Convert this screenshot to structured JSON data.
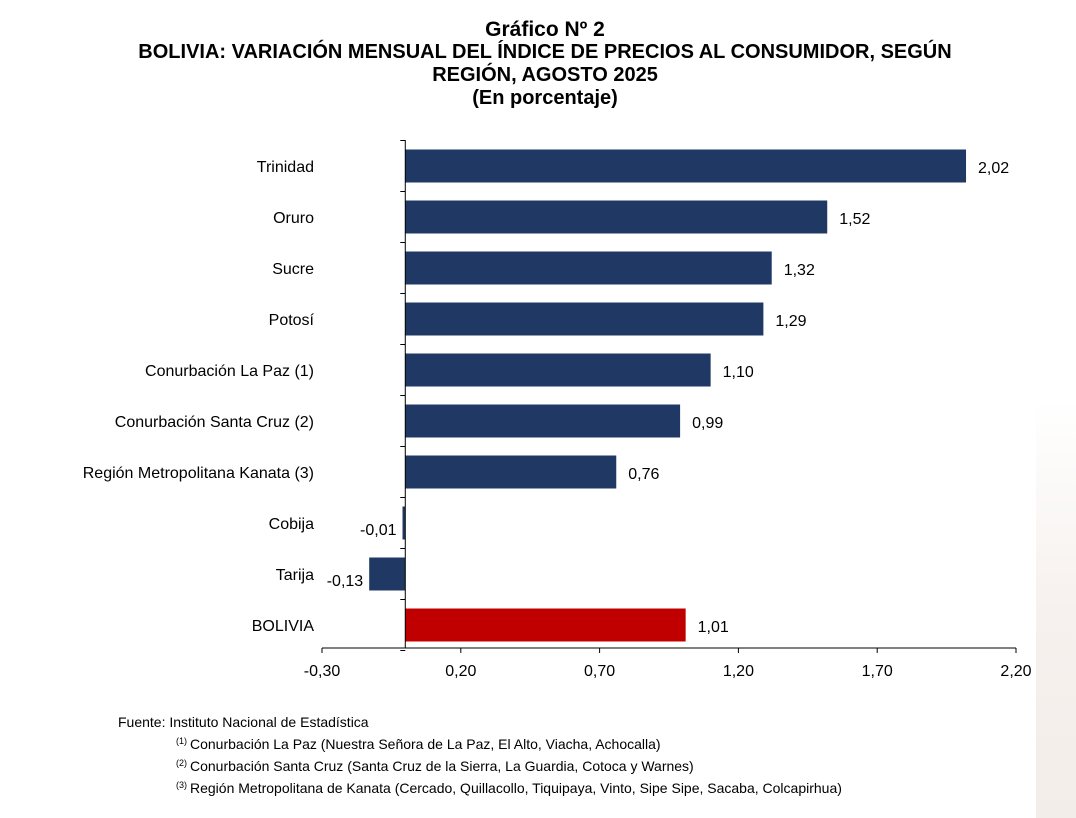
{
  "chart_data": {
    "type": "bar",
    "orientation": "horizontal",
    "titles": [
      "Gráfico Nº 2",
      "BOLIVIA: VARIACIÓN MENSUAL DEL ÍNDICE DE PRECIOS AL CONSUMIDOR, SEGÚN",
      "REGIÓN, AGOSTO 2025",
      "(En porcentaje)"
    ],
    "categories": [
      "Trinidad",
      "Oruro",
      "Sucre",
      "Potosí",
      "Conurbación La Paz (1)",
      "Conurbación Santa Cruz (2)",
      "Región Metropolitana Kanata (3)",
      "Cobija",
      "Tarija",
      "BOLIVIA"
    ],
    "values": [
      2.02,
      1.52,
      1.32,
      1.29,
      1.1,
      0.99,
      0.76,
      -0.01,
      -0.13,
      1.01
    ],
    "value_labels": [
      "2,02",
      "1,52",
      "1,32",
      "1,29",
      "1,10",
      "0,99",
      "0,76",
      "-0,01",
      "-0,13",
      "1,01"
    ],
    "xlim": [
      -0.3,
      2.2
    ],
    "xticks": [
      -0.3,
      0.2,
      0.7,
      1.2,
      1.7,
      2.2
    ],
    "xtick_labels": [
      "-0,30",
      "0,20",
      "0,70",
      "1,20",
      "1,70",
      "2,20"
    ],
    "bar_color": "#1f3864",
    "highlight_color": "#c00000",
    "highlight_category": "BOLIVIA",
    "grid": false,
    "legend": "none"
  },
  "footer": {
    "source": "Fuente: Instituto Nacional de Estadística",
    "notes": [
      {
        "mark": "(1)",
        "text": "Conurbación La Paz (Nuestra Señora de La Paz, El Alto, Viacha, Achocalla)"
      },
      {
        "mark": "(2)",
        "text": "Conurbación Santa Cruz (Santa Cruz de la Sierra, La Guardia, Cotoca y Warnes)"
      },
      {
        "mark": "(3)",
        "text": "Región Metropolitana de Kanata (Cercado, Quillacollo, Tiquipaya, Vinto, Sipe Sipe, Sacaba, Colcapirhua)"
      }
    ]
  }
}
